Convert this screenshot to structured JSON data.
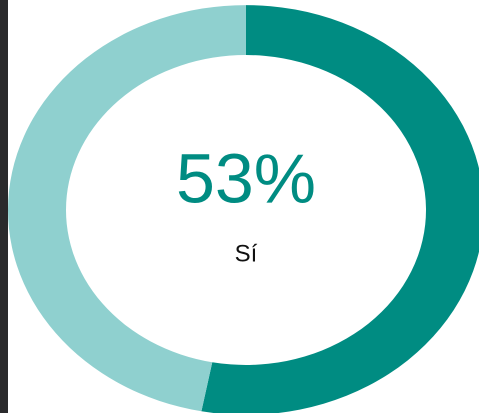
{
  "chart_data": {
    "type": "donut",
    "categories": [
      "Sí",
      null
    ],
    "values": [
      53,
      47
    ],
    "value_labels": [
      "53%",
      null
    ],
    "colors": [
      "#008c82",
      "#8fd0cf"
    ]
  }
}
